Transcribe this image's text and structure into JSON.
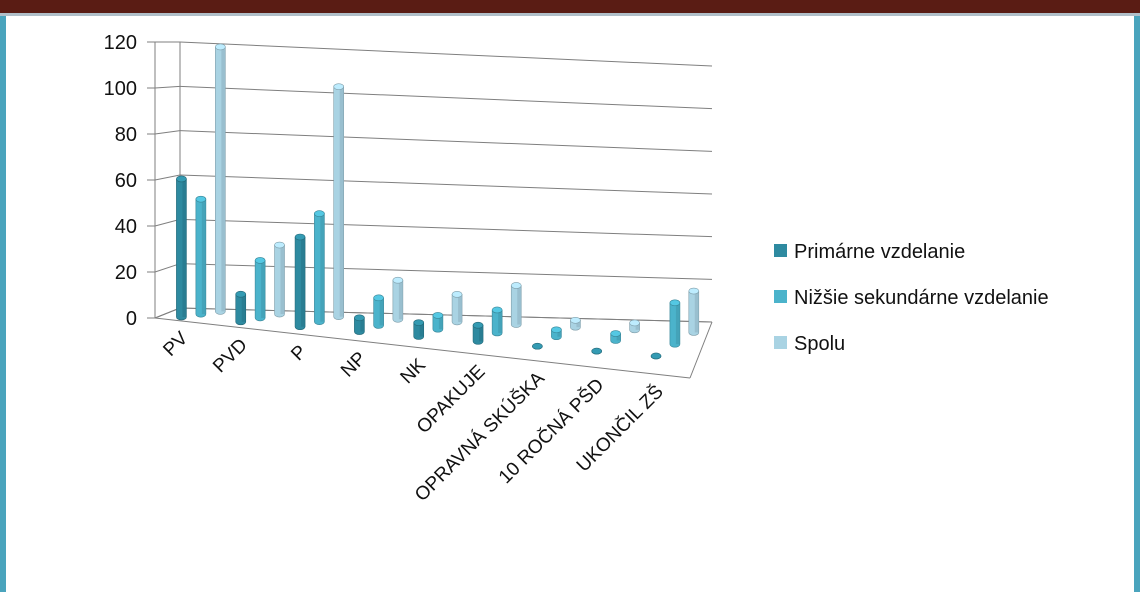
{
  "chart_data": {
    "type": "bar",
    "categories": [
      "PV",
      "PVD",
      "P",
      "NP",
      "NK",
      "OPAKUJE",
      "OPRAVNÁ SKÚŠKA",
      "10 ROČNÁ PŠD",
      "UKONČIL ZŠ"
    ],
    "series": [
      {
        "name": "Primárne vzdelanie",
        "color": "#2e8aa0",
        "values": [
          60,
          12,
          39,
          6,
          6,
          7,
          0,
          0,
          0
        ]
      },
      {
        "name": "Nižšie sekundárne vzdelanie",
        "color": "#4bb3cb",
        "values": [
          50,
          25,
          47,
          12,
          6,
          10,
          3,
          3,
          18
        ]
      },
      {
        "name": "Spolu",
        "color": "#a9d3e3",
        "values": [
          115,
          30,
          100,
          17,
          12,
          17,
          3,
          3,
          18
        ]
      }
    ],
    "ylim": [
      0,
      120
    ],
    "yticks": [
      "0",
      "20",
      "40",
      "60",
      "80",
      "100",
      "120"
    ],
    "grid": true,
    "legend_position": "right",
    "title": "",
    "xlabel": "",
    "ylabel": ""
  }
}
